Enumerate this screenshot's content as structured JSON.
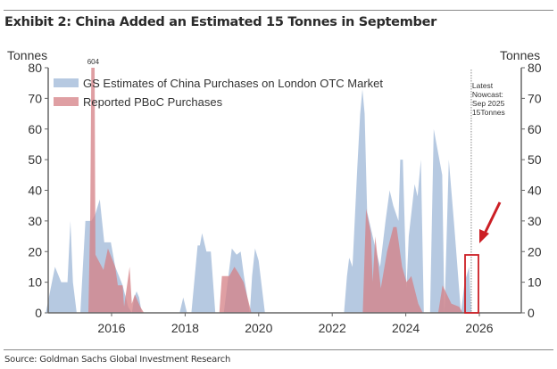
{
  "title": "Exhibit 2: China Added an Estimated 15 Tonnes in September",
  "source": "Source: Goldman Sachs Global Investment Research",
  "chart_data": {
    "type": "area",
    "title": "Exhibit 2: China Added an Estimated 15 Tonnes in September",
    "ylabel_left": "Tonnes",
    "ylabel_right": "Tonnes",
    "ylim": [
      0,
      80
    ],
    "xlim": [
      2014.28,
      2027.1
    ],
    "yticks": [
      0,
      10,
      20,
      30,
      40,
      50,
      60,
      70,
      80
    ],
    "xticks": [
      2016,
      2018,
      2020,
      2022,
      2024,
      2026
    ],
    "grid": false,
    "legend_placement": "top-left",
    "colors": {
      "gs": "#a9bfdc",
      "pboc": "#d47f84",
      "highlight": "#cc1f25"
    },
    "annotations": {
      "spike_label": "604",
      "nowcast_lines": [
        "Latest",
        "Nowcast:",
        "Sep 2025",
        "15Tonnes"
      ],
      "nowcast_x": 2025.78
    },
    "series": [
      {
        "name": "GS Estimates of China Purchases on London OTC Market",
        "points": [
          [
            2014.21,
            0
          ],
          [
            2014.46,
            15
          ],
          [
            2014.63,
            10
          ],
          [
            2014.8,
            10
          ],
          [
            2014.88,
            30
          ],
          [
            2014.95,
            10
          ],
          [
            2015.05,
            0
          ],
          [
            2015.15,
            0
          ],
          [
            2015.29,
            30
          ],
          [
            2015.45,
            30
          ],
          [
            2015.55,
            32
          ],
          [
            2015.68,
            37
          ],
          [
            2015.8,
            23
          ],
          [
            2015.98,
            23
          ],
          [
            2016.1,
            15
          ],
          [
            2016.3,
            9
          ],
          [
            2016.45,
            2
          ],
          [
            2016.55,
            0
          ],
          [
            2016.62,
            5
          ],
          [
            2016.68,
            7
          ],
          [
            2016.75,
            5
          ],
          [
            2016.82,
            0
          ],
          [
            2017.85,
            0
          ],
          [
            2017.95,
            5
          ],
          [
            2018.05,
            0
          ],
          [
            2018.17,
            0
          ],
          [
            2018.34,
            22
          ],
          [
            2018.4,
            22
          ],
          [
            2018.46,
            26
          ],
          [
            2018.58,
            20
          ],
          [
            2018.7,
            20
          ],
          [
            2018.82,
            0
          ],
          [
            2019.05,
            0
          ],
          [
            2019.27,
            21
          ],
          [
            2019.4,
            19
          ],
          [
            2019.51,
            20
          ],
          [
            2019.6,
            12
          ],
          [
            2019.76,
            0
          ],
          [
            2019.82,
            12
          ],
          [
            2019.9,
            21
          ],
          [
            2020.0,
            17
          ],
          [
            2020.17,
            0
          ],
          [
            2022.32,
            0
          ],
          [
            2022.4,
            12
          ],
          [
            2022.46,
            18
          ],
          [
            2022.55,
            15
          ],
          [
            2022.68,
            47
          ],
          [
            2022.76,
            65
          ],
          [
            2022.82,
            73
          ],
          [
            2022.88,
            65
          ],
          [
            2022.95,
            33
          ],
          [
            2023.1,
            25
          ],
          [
            2023.3,
            15
          ],
          [
            2023.45,
            30
          ],
          [
            2023.56,
            40
          ],
          [
            2023.66,
            35
          ],
          [
            2023.8,
            30
          ],
          [
            2023.85,
            50
          ],
          [
            2023.92,
            50
          ],
          [
            2024.02,
            8
          ],
          [
            2024.08,
            25
          ],
          [
            2024.24,
            42
          ],
          [
            2024.32,
            38
          ],
          [
            2024.41,
            50
          ],
          [
            2024.49,
            0
          ],
          [
            2024.66,
            0
          ],
          [
            2024.76,
            60
          ],
          [
            2024.99,
            45
          ],
          [
            2025.05,
            0
          ],
          [
            2025.1,
            20
          ],
          [
            2025.17,
            50
          ],
          [
            2025.32,
            28
          ],
          [
            2025.5,
            0
          ],
          [
            2025.6,
            10
          ],
          [
            2025.72,
            15
          ],
          [
            2025.78,
            0
          ]
        ]
      },
      {
        "name": "Reported PBoC Purchases",
        "points": [
          [
            2015.37,
            0
          ],
          [
            2015.42,
            32
          ],
          [
            2015.45,
            80
          ],
          [
            2015.54,
            80
          ],
          [
            2015.56,
            19
          ],
          [
            2015.78,
            14
          ],
          [
            2015.9,
            21
          ],
          [
            2016.1,
            15
          ],
          [
            2016.17,
            9
          ],
          [
            2016.3,
            9
          ],
          [
            2016.34,
            2
          ],
          [
            2016.49,
            15
          ],
          [
            2016.55,
            3
          ],
          [
            2016.63,
            6
          ],
          [
            2016.78,
            2
          ],
          [
            2016.88,
            0
          ],
          [
            2018.93,
            0
          ],
          [
            2019.0,
            12
          ],
          [
            2019.2,
            12
          ],
          [
            2019.34,
            15
          ],
          [
            2019.45,
            13
          ],
          [
            2019.59,
            10
          ],
          [
            2019.8,
            0
          ],
          [
            2022.83,
            0
          ],
          [
            2022.92,
            34
          ],
          [
            2023.05,
            26
          ],
          [
            2023.1,
            10
          ],
          [
            2023.17,
            25
          ],
          [
            2023.32,
            8
          ],
          [
            2023.49,
            20
          ],
          [
            2023.66,
            28
          ],
          [
            2023.75,
            28
          ],
          [
            2023.9,
            15
          ],
          [
            2024.02,
            10
          ],
          [
            2024.15,
            12
          ],
          [
            2024.34,
            3
          ],
          [
            2024.46,
            0
          ],
          [
            2024.88,
            0
          ],
          [
            2025.0,
            9
          ],
          [
            2025.24,
            3
          ],
          [
            2025.45,
            2
          ],
          [
            2025.55,
            0
          ]
        ]
      }
    ]
  }
}
